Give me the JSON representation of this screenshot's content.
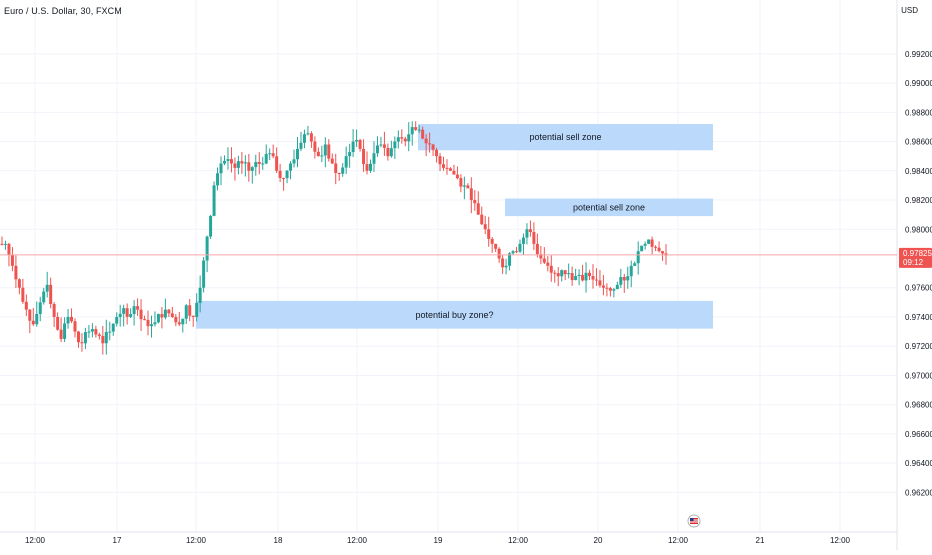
{
  "header": {
    "symbol_line": "Euro / U.S. Dollar, 30, FXCM",
    "currency": "USD"
  },
  "colors": {
    "up": "#26a69a",
    "down": "#ef5350",
    "zone_fill": "#bbd9fb",
    "grid": "#f0f3fa",
    "last_price_line": "#f7a6a6",
    "price_tag": "#ef5350"
  },
  "events_icon": "us-flag-event-icon",
  "chart_data": {
    "type": "candlestick",
    "title": "Euro / U.S. Dollar, 30, FXCM",
    "ylabel": "USD",
    "ylim": [
      0.961,
      0.995
    ],
    "y_ticks": [
      "0.99200",
      "0.99000",
      "0.98800",
      "0.98600",
      "0.98400",
      "0.98200",
      "0.98000",
      "0.97600",
      "0.97400",
      "0.97200",
      "0.97000",
      "0.96800",
      "0.96600",
      "0.96400",
      "0.96200"
    ],
    "x_ticks": [
      "12:00",
      "17",
      "12:00",
      "18",
      "12:00",
      "19",
      "12:00",
      "20",
      "12:00",
      "21",
      "12:00"
    ],
    "grid": true,
    "last_price": {
      "value": "0.97825",
      "countdown": "09:12"
    },
    "zones": [
      {
        "label": "potential sell zone",
        "top": 0.9872,
        "bottom": 0.9854
      },
      {
        "label": "potential sell zone",
        "top": 0.9821,
        "bottom": 0.9809
      },
      {
        "label": "potential buy zone?",
        "top": 0.9751,
        "bottom": 0.9732
      }
    ],
    "series_close_path": [
      0.979,
      0.9775,
      0.976,
      0.9745,
      0.9735,
      0.975,
      0.9762,
      0.974,
      0.9725,
      0.974,
      0.973,
      0.9722,
      0.973,
      0.9728,
      0.9722,
      0.973,
      0.974,
      0.9746,
      0.9742,
      0.9745,
      0.9738,
      0.9735,
      0.9742,
      0.9745,
      0.974,
      0.9735,
      0.9748,
      0.974,
      0.976,
      0.9795,
      0.983,
      0.9845,
      0.9848,
      0.9842,
      0.9845,
      0.984,
      0.9846,
      0.9845,
      0.9852,
      0.984,
      0.9835,
      0.9845,
      0.9855,
      0.9865,
      0.986,
      0.985,
      0.9858,
      0.9845,
      0.9838,
      0.985,
      0.986,
      0.9855,
      0.984,
      0.9852,
      0.9858,
      0.985,
      0.986,
      0.9862,
      0.9865,
      0.9868,
      0.9862,
      0.9858,
      0.985,
      0.9842,
      0.984,
      0.9835,
      0.983,
      0.982,
      0.981,
      0.98,
      0.979,
      0.978,
      0.9775,
      0.9785,
      0.979,
      0.98,
      0.979,
      0.978,
      0.9775,
      0.977,
      0.9772,
      0.977,
      0.9768,
      0.9765,
      0.9768,
      0.9765,
      0.976,
      0.9758,
      0.9762,
      0.9765,
      0.9775,
      0.9785,
      0.979,
      0.9788,
      0.9785,
      0.9782
    ]
  }
}
